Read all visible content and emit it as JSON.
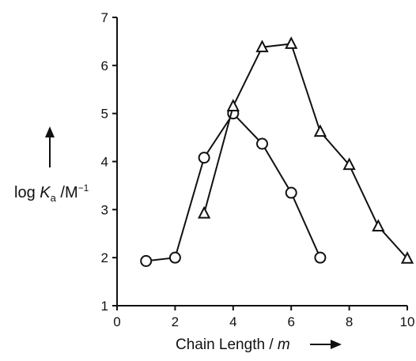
{
  "chart_data": {
    "type": "line",
    "xlabel": {
      "text": "Chain Length / ",
      "var": "m",
      "arrow": "→"
    },
    "ylabel": {
      "text": "log ",
      "var": "K",
      "sub": "a",
      "unit": " /M",
      "sup": "−1"
    },
    "xlim": [
      0,
      10
    ],
    "ylim": [
      1,
      7
    ],
    "xticks": [
      0,
      2,
      4,
      6,
      8,
      10
    ],
    "yticks": [
      1,
      2,
      3,
      4,
      5,
      6,
      7
    ],
    "grid": false,
    "legend": "none",
    "series": [
      {
        "marker": "circle",
        "x": [
          1,
          2,
          3,
          4,
          5,
          6,
          7
        ],
        "y": [
          1.93,
          2.0,
          4.08,
          5.0,
          4.37,
          3.35,
          2.0
        ]
      },
      {
        "marker": "triangle",
        "x": [
          3,
          4,
          5,
          6,
          7,
          8,
          9,
          10
        ],
        "y": [
          2.92,
          5.15,
          6.38,
          6.45,
          4.62,
          3.93,
          2.65,
          1.98
        ]
      }
    ]
  }
}
